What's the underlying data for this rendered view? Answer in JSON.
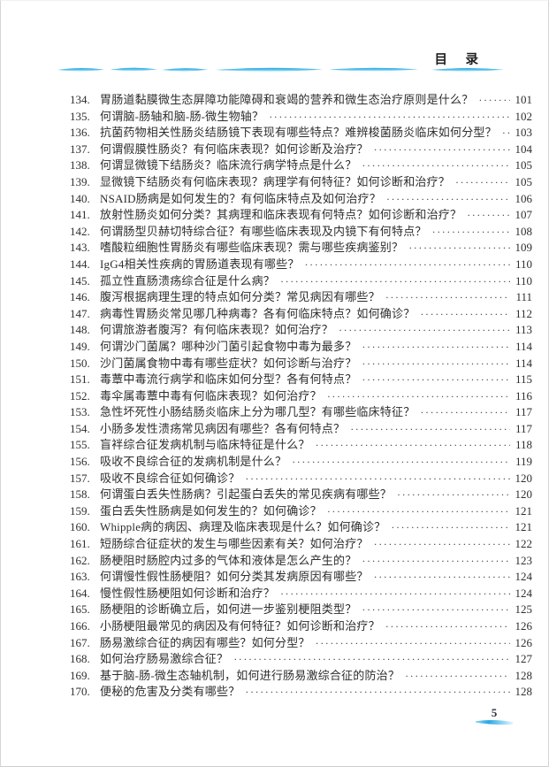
{
  "header": {
    "title": "目　录"
  },
  "colors": {
    "wave_blue": "#1fa6e0",
    "wave_blue_light": "#bfe9f8"
  },
  "footer": {
    "page_number": "5"
  },
  "toc": {
    "entries": [
      {
        "num": "134",
        "title": "胃肠道黏膜微生态屏障功能障碍和衰竭的营养和微生态治疗原则是什么？",
        "page": "101"
      },
      {
        "num": "135",
        "title": "何谓脑-肠轴和脑-肠-微生物轴？",
        "page": "102"
      },
      {
        "num": "136",
        "title": "抗菌药物相关性肠炎结肠镜下表现有哪些特点？难辨梭菌肠炎临床如何分型？",
        "page": "103"
      },
      {
        "num": "137",
        "title": "何谓假膜性肠炎？有何临床表现？如何诊断及治疗？",
        "page": "104"
      },
      {
        "num": "138",
        "title": "何谓显微镜下结肠炎？临床流行病学特点是什么？",
        "page": "105"
      },
      {
        "num": "139",
        "title": "显微镜下结肠炎有何临床表现？病理学有何特征？如何诊断和治疗？",
        "page": "105"
      },
      {
        "num": "140",
        "title": "NSAID肠病是如何发生的？有何临床特点及如何治疗？",
        "page": "106"
      },
      {
        "num": "141",
        "title": "放射性肠炎如何分类？其病理和临床表现有何特点？如何诊断和治疗？",
        "page": "107"
      },
      {
        "num": "142",
        "title": "何谓肠型贝赫切特综合征？有哪些临床表现及内镜下有何特点？",
        "page": "108"
      },
      {
        "num": "143",
        "title": "嗜酸粒细胞性胃肠炎有哪些临床表现？需与哪些疾病鉴别？",
        "page": "109"
      },
      {
        "num": "144",
        "title": "IgG4相关性疾病的胃肠道表现有哪些？",
        "page": "110"
      },
      {
        "num": "145",
        "title": "孤立性直肠溃疡综合征是什么病？",
        "page": "110"
      },
      {
        "num": "146",
        "title": "腹泻根据病理生理的特点如何分类？常见病因有哪些？",
        "page": "111"
      },
      {
        "num": "147",
        "title": "病毒性胃肠炎常见哪几种病毒？各有何临床特点？如何确诊？",
        "page": "112"
      },
      {
        "num": "148",
        "title": "何谓旅游者腹泻？有何临床表现？如何治疗？",
        "page": "113"
      },
      {
        "num": "149",
        "title": "何谓沙门菌属？哪种沙门菌引起食物中毒为最多？",
        "page": "114"
      },
      {
        "num": "150",
        "title": "沙门菌属食物中毒有哪些症状？如何诊断与治疗？",
        "page": "114"
      },
      {
        "num": "151",
        "title": "毒蕈中毒流行病学和临床如何分型？各有何特点？",
        "page": "115"
      },
      {
        "num": "152",
        "title": "毒伞属毒蕈中毒有何临床表现？如何治疗？",
        "page": "116"
      },
      {
        "num": "153",
        "title": "急性坏死性小肠结肠炎临床上分为哪几型？有哪些临床特征？",
        "page": "117"
      },
      {
        "num": "154",
        "title": "小肠多发性溃疡常见病因有哪些？各有何特点？",
        "page": "117"
      },
      {
        "num": "155",
        "title": "盲袢综合征发病机制与临床特征是什么？",
        "page": "118"
      },
      {
        "num": "156",
        "title": "吸收不良综合征的发病机制是什么？",
        "page": "119"
      },
      {
        "num": "157",
        "title": "吸收不良综合征如何确诊？",
        "page": "120"
      },
      {
        "num": "158",
        "title": "何谓蛋白丢失性肠病？引起蛋白丢失的常见疾病有哪些？",
        "page": "120"
      },
      {
        "num": "159",
        "title": "蛋白丢失性肠病是如何发生的？如何确诊？",
        "page": "121"
      },
      {
        "num": "160",
        "title": "Whipple病的病因、病理及临床表现是什么？如何确诊？",
        "page": "121"
      },
      {
        "num": "161",
        "title": "短肠综合征症状的发生与哪些因素有关？如何治疗？",
        "page": "122"
      },
      {
        "num": "162",
        "title": "肠梗阻时肠腔内过多的气体和液体是怎么产生的？",
        "page": "123"
      },
      {
        "num": "163",
        "title": "何谓慢性假性肠梗阻？如何分类其发病原因有哪些？",
        "page": "124"
      },
      {
        "num": "164",
        "title": "慢性假性肠梗阻如何诊断和治疗？",
        "page": "124"
      },
      {
        "num": "165",
        "title": "肠梗阻的诊断确立后，如何进一步鉴别梗阻类型？",
        "page": "125"
      },
      {
        "num": "166",
        "title": "小肠梗阻最常见的病因及有何特征？如何诊断和治疗？",
        "page": "126"
      },
      {
        "num": "167",
        "title": "肠易激综合征的病因有哪些？如何分型？",
        "page": "126"
      },
      {
        "num": "168",
        "title": "如何治疗肠易激综合征？",
        "page": "127"
      },
      {
        "num": "169",
        "title": "基于脑-肠-微生态轴机制，如何进行肠易激综合征的防治？",
        "page": "128"
      },
      {
        "num": "170",
        "title": "便秘的危害及分类有哪些？",
        "page": "128"
      }
    ]
  }
}
